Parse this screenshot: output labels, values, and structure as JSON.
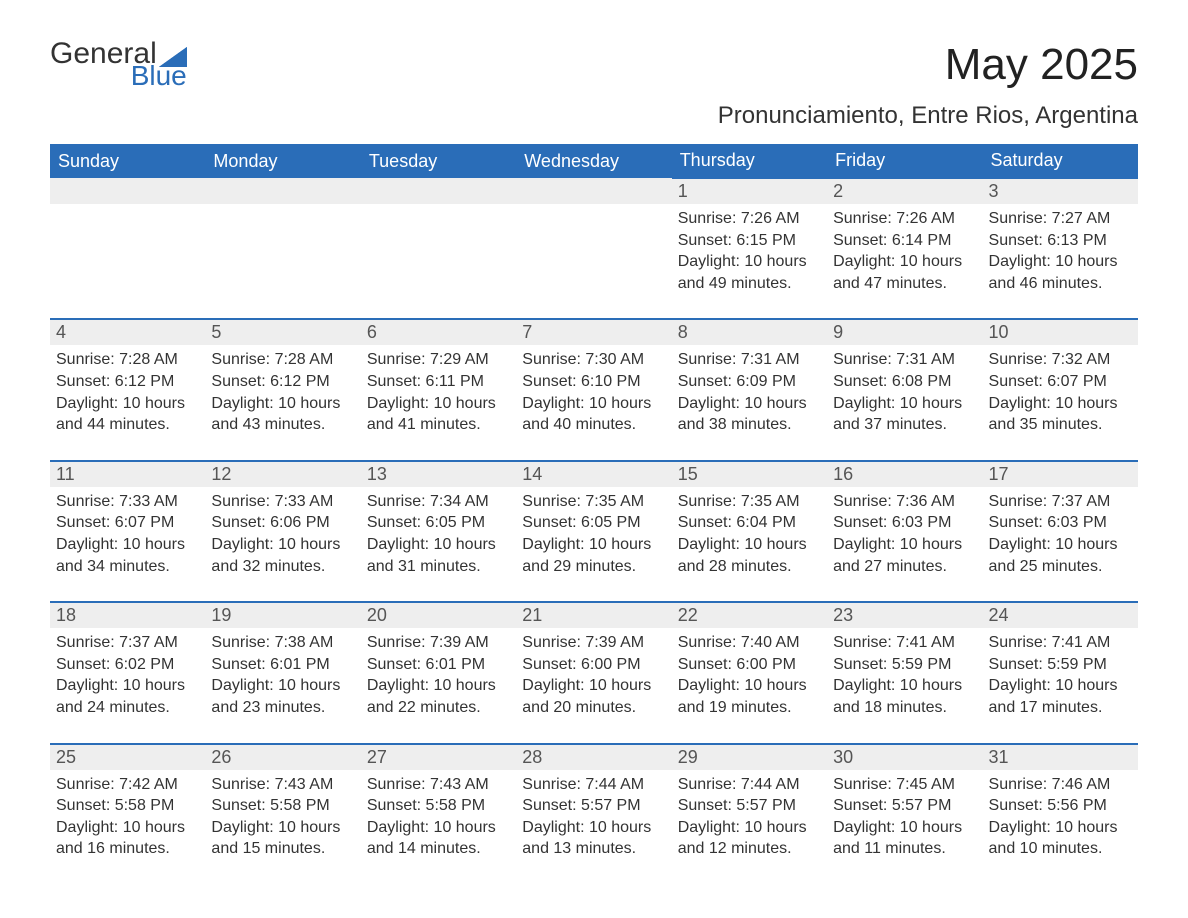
{
  "logo": {
    "text1": "General",
    "text2": "Blue",
    "color_blue": "#2a6db8",
    "color_dark": "#333333"
  },
  "header": {
    "month_title": "May 2025",
    "location": "Pronunciamiento, Entre Rios, Argentina"
  },
  "colors": {
    "header_bg": "#2a6db8",
    "header_text": "#ffffff",
    "daynum_bg": "#eeeeee",
    "daynum_border": "#2a6db8",
    "body_text": "#333333",
    "page_bg": "#ffffff"
  },
  "columns": [
    "Sunday",
    "Monday",
    "Tuesday",
    "Wednesday",
    "Thursday",
    "Friday",
    "Saturday"
  ],
  "weeks": [
    {
      "nums": [
        "",
        "",
        "",
        "",
        "1",
        "2",
        "3"
      ],
      "cells": [
        null,
        null,
        null,
        null,
        {
          "sunrise": "Sunrise: 7:26 AM",
          "sunset": "Sunset: 6:15 PM",
          "day1": "Daylight: 10 hours",
          "day2": "and 49 minutes."
        },
        {
          "sunrise": "Sunrise: 7:26 AM",
          "sunset": "Sunset: 6:14 PM",
          "day1": "Daylight: 10 hours",
          "day2": "and 47 minutes."
        },
        {
          "sunrise": "Sunrise: 7:27 AM",
          "sunset": "Sunset: 6:13 PM",
          "day1": "Daylight: 10 hours",
          "day2": "and 46 minutes."
        }
      ]
    },
    {
      "nums": [
        "4",
        "5",
        "6",
        "7",
        "8",
        "9",
        "10"
      ],
      "cells": [
        {
          "sunrise": "Sunrise: 7:28 AM",
          "sunset": "Sunset: 6:12 PM",
          "day1": "Daylight: 10 hours",
          "day2": "and 44 minutes."
        },
        {
          "sunrise": "Sunrise: 7:28 AM",
          "sunset": "Sunset: 6:12 PM",
          "day1": "Daylight: 10 hours",
          "day2": "and 43 minutes."
        },
        {
          "sunrise": "Sunrise: 7:29 AM",
          "sunset": "Sunset: 6:11 PM",
          "day1": "Daylight: 10 hours",
          "day2": "and 41 minutes."
        },
        {
          "sunrise": "Sunrise: 7:30 AM",
          "sunset": "Sunset: 6:10 PM",
          "day1": "Daylight: 10 hours",
          "day2": "and 40 minutes."
        },
        {
          "sunrise": "Sunrise: 7:31 AM",
          "sunset": "Sunset: 6:09 PM",
          "day1": "Daylight: 10 hours",
          "day2": "and 38 minutes."
        },
        {
          "sunrise": "Sunrise: 7:31 AM",
          "sunset": "Sunset: 6:08 PM",
          "day1": "Daylight: 10 hours",
          "day2": "and 37 minutes."
        },
        {
          "sunrise": "Sunrise: 7:32 AM",
          "sunset": "Sunset: 6:07 PM",
          "day1": "Daylight: 10 hours",
          "day2": "and 35 minutes."
        }
      ]
    },
    {
      "nums": [
        "11",
        "12",
        "13",
        "14",
        "15",
        "16",
        "17"
      ],
      "cells": [
        {
          "sunrise": "Sunrise: 7:33 AM",
          "sunset": "Sunset: 6:07 PM",
          "day1": "Daylight: 10 hours",
          "day2": "and 34 minutes."
        },
        {
          "sunrise": "Sunrise: 7:33 AM",
          "sunset": "Sunset: 6:06 PM",
          "day1": "Daylight: 10 hours",
          "day2": "and 32 minutes."
        },
        {
          "sunrise": "Sunrise: 7:34 AM",
          "sunset": "Sunset: 6:05 PM",
          "day1": "Daylight: 10 hours",
          "day2": "and 31 minutes."
        },
        {
          "sunrise": "Sunrise: 7:35 AM",
          "sunset": "Sunset: 6:05 PM",
          "day1": "Daylight: 10 hours",
          "day2": "and 29 minutes."
        },
        {
          "sunrise": "Sunrise: 7:35 AM",
          "sunset": "Sunset: 6:04 PM",
          "day1": "Daylight: 10 hours",
          "day2": "and 28 minutes."
        },
        {
          "sunrise": "Sunrise: 7:36 AM",
          "sunset": "Sunset: 6:03 PM",
          "day1": "Daylight: 10 hours",
          "day2": "and 27 minutes."
        },
        {
          "sunrise": "Sunrise: 7:37 AM",
          "sunset": "Sunset: 6:03 PM",
          "day1": "Daylight: 10 hours",
          "day2": "and 25 minutes."
        }
      ]
    },
    {
      "nums": [
        "18",
        "19",
        "20",
        "21",
        "22",
        "23",
        "24"
      ],
      "cells": [
        {
          "sunrise": "Sunrise: 7:37 AM",
          "sunset": "Sunset: 6:02 PM",
          "day1": "Daylight: 10 hours",
          "day2": "and 24 minutes."
        },
        {
          "sunrise": "Sunrise: 7:38 AM",
          "sunset": "Sunset: 6:01 PM",
          "day1": "Daylight: 10 hours",
          "day2": "and 23 minutes."
        },
        {
          "sunrise": "Sunrise: 7:39 AM",
          "sunset": "Sunset: 6:01 PM",
          "day1": "Daylight: 10 hours",
          "day2": "and 22 minutes."
        },
        {
          "sunrise": "Sunrise: 7:39 AM",
          "sunset": "Sunset: 6:00 PM",
          "day1": "Daylight: 10 hours",
          "day2": "and 20 minutes."
        },
        {
          "sunrise": "Sunrise: 7:40 AM",
          "sunset": "Sunset: 6:00 PM",
          "day1": "Daylight: 10 hours",
          "day2": "and 19 minutes."
        },
        {
          "sunrise": "Sunrise: 7:41 AM",
          "sunset": "Sunset: 5:59 PM",
          "day1": "Daylight: 10 hours",
          "day2": "and 18 minutes."
        },
        {
          "sunrise": "Sunrise: 7:41 AM",
          "sunset": "Sunset: 5:59 PM",
          "day1": "Daylight: 10 hours",
          "day2": "and 17 minutes."
        }
      ]
    },
    {
      "nums": [
        "25",
        "26",
        "27",
        "28",
        "29",
        "30",
        "31"
      ],
      "cells": [
        {
          "sunrise": "Sunrise: 7:42 AM",
          "sunset": "Sunset: 5:58 PM",
          "day1": "Daylight: 10 hours",
          "day2": "and 16 minutes."
        },
        {
          "sunrise": "Sunrise: 7:43 AM",
          "sunset": "Sunset: 5:58 PM",
          "day1": "Daylight: 10 hours",
          "day2": "and 15 minutes."
        },
        {
          "sunrise": "Sunrise: 7:43 AM",
          "sunset": "Sunset: 5:58 PM",
          "day1": "Daylight: 10 hours",
          "day2": "and 14 minutes."
        },
        {
          "sunrise": "Sunrise: 7:44 AM",
          "sunset": "Sunset: 5:57 PM",
          "day1": "Daylight: 10 hours",
          "day2": "and 13 minutes."
        },
        {
          "sunrise": "Sunrise: 7:44 AM",
          "sunset": "Sunset: 5:57 PM",
          "day1": "Daylight: 10 hours",
          "day2": "and 12 minutes."
        },
        {
          "sunrise": "Sunrise: 7:45 AM",
          "sunset": "Sunset: 5:57 PM",
          "day1": "Daylight: 10 hours",
          "day2": "and 11 minutes."
        },
        {
          "sunrise": "Sunrise: 7:46 AM",
          "sunset": "Sunset: 5:56 PM",
          "day1": "Daylight: 10 hours",
          "day2": "and 10 minutes."
        }
      ]
    }
  ]
}
